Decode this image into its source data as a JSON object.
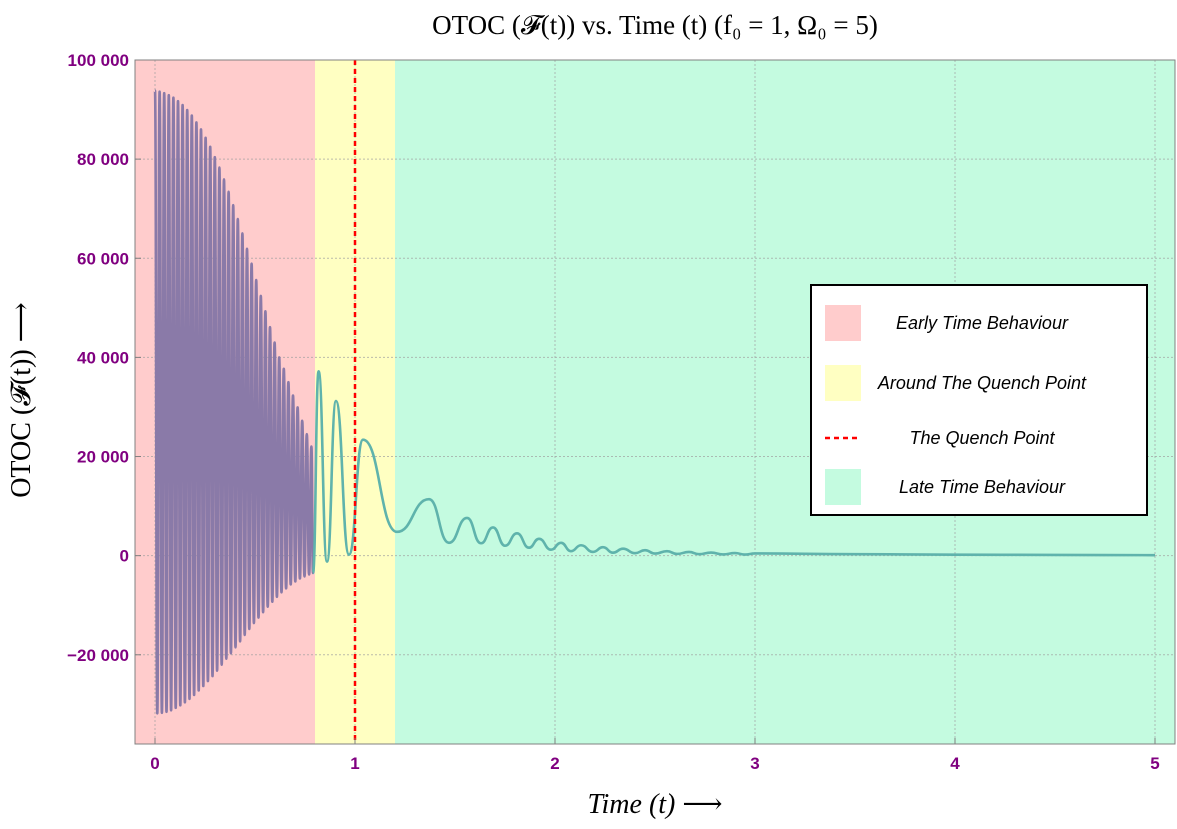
{
  "chart_data": {
    "type": "line",
    "title": "OTOC (𝓕(t)) vs. Time (t) (f₀ = 1, Ω₀ = 5)",
    "xlabel": "Time (t) ⟶",
    "ylabel": "OTOC (𝓕(t)) ⟶",
    "xlim": [
      -0.1,
      5.1
    ],
    "ylim": [
      -38000,
      100000
    ],
    "x_ticks": [
      0,
      1,
      2,
      3,
      4,
      5
    ],
    "y_ticks": [
      -20000,
      0,
      20000,
      40000,
      60000,
      80000,
      100000
    ],
    "x_tick_labels": [
      "0",
      "1",
      "2",
      "3",
      "4",
      "5"
    ],
    "y_tick_labels": [
      "−20 000",
      "0",
      "20 000",
      "40 000",
      "60 000",
      "80 000",
      "100 000"
    ],
    "grid": true,
    "legend_position": "right",
    "regions": [
      {
        "name": "Early Time Behaviour",
        "x_start": -0.1,
        "x_end": 0.8,
        "color": "#ffcccc"
      },
      {
        "name": "Around The Quench Point",
        "x_start": 0.8,
        "x_end": 1.2,
        "color": "#ffffc2"
      },
      {
        "name": "Late Time Behaviour",
        "x_start": 1.2,
        "x_end": 5.1,
        "color": "#c4fbe0"
      }
    ],
    "quench_point": {
      "name": "The Quench Point",
      "x": 1.0,
      "color": "#ff0000"
    },
    "series": [
      {
        "color_early": "#8a7aa8",
        "color_late": "#5fb3ac",
        "peaks": [
          [
            0.0,
            93800
          ],
          [
            0.023,
            93600
          ],
          [
            0.046,
            93300
          ],
          [
            0.069,
            92900
          ],
          [
            0.092,
            92400
          ],
          [
            0.115,
            91700
          ],
          [
            0.138,
            90900
          ],
          [
            0.161,
            89900
          ],
          [
            0.184,
            88800
          ],
          [
            0.207,
            87400
          ],
          [
            0.23,
            86000
          ],
          [
            0.253,
            84300
          ],
          [
            0.276,
            82500
          ],
          [
            0.299,
            80400
          ],
          [
            0.322,
            78300
          ],
          [
            0.345,
            75900
          ],
          [
            0.368,
            73400
          ],
          [
            0.391,
            70700
          ],
          [
            0.414,
            67900
          ],
          [
            0.437,
            65000
          ],
          [
            0.46,
            61900
          ],
          [
            0.483,
            58900
          ],
          [
            0.506,
            55600
          ],
          [
            0.529,
            52400
          ],
          [
            0.552,
            49300
          ],
          [
            0.575,
            46100
          ],
          [
            0.598,
            43000
          ],
          [
            0.621,
            40000
          ],
          [
            0.644,
            37700
          ],
          [
            0.667,
            35000
          ],
          [
            0.69,
            32300
          ],
          [
            0.713,
            29900
          ],
          [
            0.736,
            27200
          ],
          [
            0.759,
            24500
          ],
          [
            0.782,
            22000
          ],
          [
            0.818,
            37200
          ],
          [
            0.905,
            31200
          ],
          [
            1.04,
            23400
          ],
          [
            1.37,
            11400
          ],
          [
            1.56,
            7600
          ],
          [
            1.69,
            5700
          ],
          [
            1.81,
            4500
          ],
          [
            1.92,
            3400
          ],
          [
            2.03,
            2600
          ],
          [
            2.13,
            2100
          ],
          [
            2.24,
            1700
          ],
          [
            2.34,
            1400
          ],
          [
            2.45,
            1100
          ],
          [
            2.56,
            900
          ],
          [
            2.67,
            750
          ],
          [
            2.78,
            620
          ],
          [
            2.9,
            520
          ],
          [
            3.0,
            450
          ],
          [
            3.5,
            300
          ],
          [
            4.0,
            200
          ],
          [
            4.5,
            150
          ],
          [
            5.0,
            100
          ]
        ],
        "troughs": [
          [
            0.0115,
            -31800
          ],
          [
            0.0345,
            -31700
          ],
          [
            0.0575,
            -31500
          ],
          [
            0.0805,
            -31200
          ],
          [
            0.1035,
            -30700
          ],
          [
            0.1265,
            -30200
          ],
          [
            0.1495,
            -29600
          ],
          [
            0.1725,
            -28900
          ],
          [
            0.1955,
            -28100
          ],
          [
            0.2185,
            -27200
          ],
          [
            0.2415,
            -26300
          ],
          [
            0.2645,
            -25300
          ],
          [
            0.2875,
            -24300
          ],
          [
            0.3105,
            -23200
          ],
          [
            0.3335,
            -22000
          ],
          [
            0.3565,
            -20800
          ],
          [
            0.3795,
            -19700
          ],
          [
            0.4025,
            -18500
          ],
          [
            0.4255,
            -17300
          ],
          [
            0.4485,
            -16000
          ],
          [
            0.4715,
            -14800
          ],
          [
            0.4945,
            -13600
          ],
          [
            0.5175,
            -12500
          ],
          [
            0.5405,
            -11400
          ],
          [
            0.5635,
            -10300
          ],
          [
            0.5865,
            -9300
          ],
          [
            0.6095,
            -8300
          ],
          [
            0.6325,
            -7400
          ],
          [
            0.6555,
            -6600
          ],
          [
            0.6785,
            -5800
          ],
          [
            0.7015,
            -5200
          ],
          [
            0.7245,
            -4600
          ],
          [
            0.7475,
            -4200
          ],
          [
            0.7705,
            -3800
          ],
          [
            0.79,
            -3500
          ],
          [
            0.86,
            -1200
          ],
          [
            0.97,
            200
          ],
          [
            1.21,
            4800
          ],
          [
            1.47,
            2600
          ],
          [
            1.63,
            2500
          ],
          [
            1.75,
            2000
          ],
          [
            1.87,
            1600
          ],
          [
            1.98,
            1200
          ],
          [
            2.08,
            900
          ],
          [
            2.19,
            750
          ],
          [
            2.29,
            600
          ],
          [
            2.4,
            500
          ],
          [
            2.5,
            420
          ],
          [
            2.61,
            350
          ],
          [
            2.72,
            300
          ],
          [
            2.84,
            250
          ],
          [
            2.95,
            220
          ]
        ],
        "color_split_x": 0.8
      }
    ]
  },
  "legend": {
    "items": [
      {
        "label": "Early Time Behaviour",
        "swatch": "box",
        "color": "#ffcccc"
      },
      {
        "label": "Around The Quench Point",
        "swatch": "box",
        "color": "#ffffc2"
      },
      {
        "label": "The Quench Point",
        "swatch": "dashed-line",
        "color": "#ff0000"
      },
      {
        "label": "Late Time Behaviour",
        "swatch": "box",
        "color": "#c4fbe0"
      }
    ]
  },
  "colors": {
    "tick_label": "#800080",
    "grid": "#a0a0a0",
    "frame": "#808080"
  }
}
